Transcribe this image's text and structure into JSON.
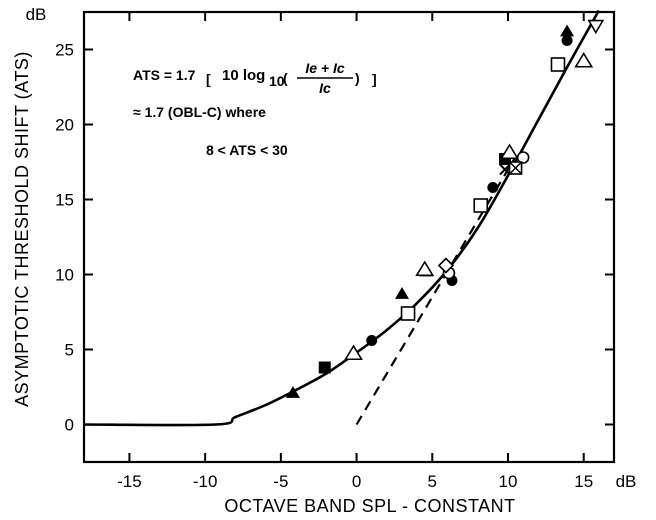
{
  "chart_data": {
    "type": "scatter",
    "xlabel": "OCTAVE BAND SPL - CONSTANT",
    "ylabel": "ASYMPTOTIC THRESHOLD SHIFT (ATS)",
    "x_unit": "dB",
    "y_unit": "dB",
    "xlim": [
      -18,
      17
    ],
    "ylim": [
      -2.5,
      27.5
    ],
    "x_ticks": [
      -15,
      -10,
      -5,
      0,
      5,
      10,
      15
    ],
    "x_tick_labels": [
      "-15",
      "-10",
      "-5",
      "0",
      "5",
      "10",
      "15"
    ],
    "y_ticks": [
      0,
      5,
      10,
      15,
      20,
      25
    ],
    "y_tick_labels": [
      "0",
      "5",
      "10",
      "15",
      "20",
      "25"
    ],
    "grid": false,
    "annotation": {
      "line1_prefix": "ATS = 1.7",
      "line1_log": "10 log",
      "line1_sub": "10",
      "line1_num": "Ie + Ic",
      "line1_den": "Ic",
      "line2": "≈ 1.7 (OBL-C) where",
      "line3": "8 < ATS < 30"
    },
    "series": [
      {
        "marker": "filled-triangle",
        "points": [
          [
            -4.2,
            2.1
          ],
          [
            3.0,
            8.7
          ],
          [
            4.6,
            10.2
          ],
          [
            13.9,
            26.2
          ]
        ]
      },
      {
        "marker": "filled-square",
        "points": [
          [
            -2.1,
            3.8
          ],
          [
            9.8,
            17.7
          ]
        ]
      },
      {
        "marker": "filled-circle",
        "points": [
          [
            1.0,
            5.6
          ],
          [
            6.3,
            9.6
          ],
          [
            9.0,
            15.8
          ],
          [
            13.9,
            25.6
          ]
        ]
      },
      {
        "marker": "open-triangle",
        "points": [
          [
            -0.2,
            4.7
          ],
          [
            4.5,
            10.3
          ],
          [
            10.1,
            18.1
          ],
          [
            15.0,
            24.2
          ]
        ]
      },
      {
        "marker": "open-square",
        "points": [
          [
            3.4,
            7.4
          ],
          [
            8.2,
            14.6
          ],
          [
            13.3,
            24.0
          ]
        ]
      },
      {
        "marker": "open-circle",
        "points": [
          [
            6.1,
            10.1
          ],
          [
            11.0,
            17.8
          ]
        ]
      },
      {
        "marker": "open-diamond",
        "points": [
          [
            5.9,
            10.6
          ]
        ]
      },
      {
        "marker": "inverted-triangle",
        "points": [
          [
            15.8,
            26.6
          ]
        ]
      },
      {
        "marker": "crossed-square",
        "points": [
          [
            10.5,
            17.1
          ]
        ]
      },
      {
        "marker": "x",
        "points": [
          [
            9.8,
            17.0
          ]
        ]
      }
    ],
    "curves": [
      {
        "style": "solid",
        "points": [
          [
            -18,
            0
          ],
          [
            -9.3,
            0
          ],
          [
            -8,
            0.5
          ],
          [
            -6,
            1.3
          ],
          [
            -4,
            2.3
          ],
          [
            -2,
            3.4
          ],
          [
            0,
            4.8
          ],
          [
            2,
            6.3
          ],
          [
            4,
            8.1
          ],
          [
            6,
            10.3
          ],
          [
            8,
            13.1
          ],
          [
            10,
            16.6
          ],
          [
            12,
            20.3
          ],
          [
            14,
            24.0
          ],
          [
            16,
            27.6
          ]
        ]
      },
      {
        "style": "dashed",
        "points": [
          [
            0,
            0
          ],
          [
            10.5,
            17.85
          ]
        ]
      }
    ]
  }
}
